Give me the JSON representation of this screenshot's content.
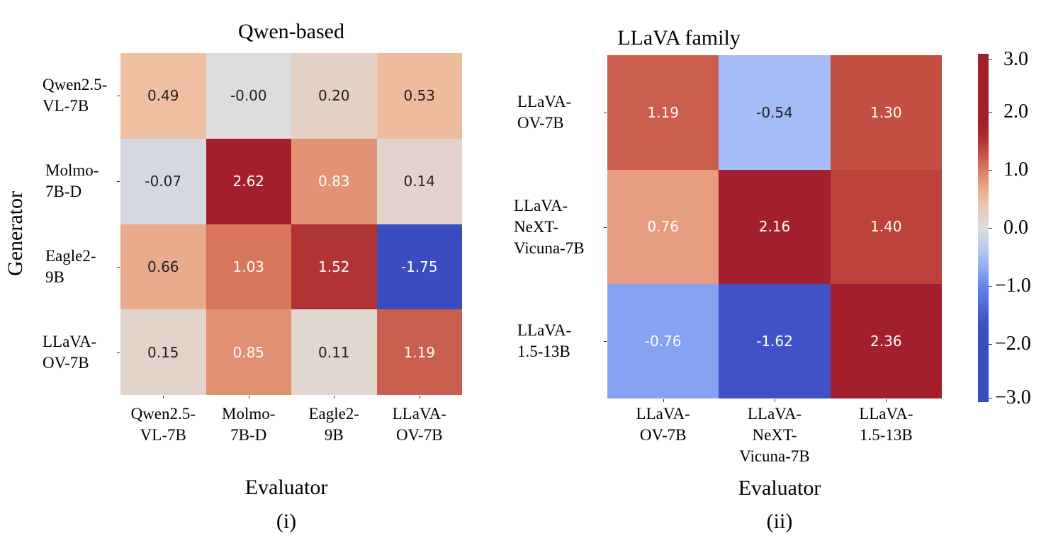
{
  "chart_data": [
    {
      "type": "heatmap",
      "title": "Qwen-based",
      "xlabel": "Evaluator",
      "ylabel": "Generator",
      "panel_label": "(i)",
      "x_categories": [
        "Qwen2.5-\nVL-7B",
        "Molmo-\n7B-D",
        "Eagle2-\n9B",
        "LLaVA-\nOV-7B"
      ],
      "y_categories": [
        "Qwen2.5-\nVL-7B",
        "Molmo-\n7B-D",
        "Eagle2-\n9B",
        "LLaVA-\nOV-7B"
      ],
      "values": [
        [
          "0.49",
          "-0.00",
          "0.20",
          "0.53"
        ],
        [
          "-0.07",
          "2.62",
          "0.83",
          "0.14"
        ],
        [
          "0.66",
          "1.03",
          "1.52",
          "-1.75"
        ],
        [
          "0.15",
          "0.85",
          "0.11",
          "1.19"
        ]
      ],
      "colormap": "coolwarm"
    },
    {
      "type": "heatmap",
      "title": "LLaVA family",
      "xlabel": "Evaluator",
      "panel_label": "(ii)",
      "x_categories": [
        "LLaVA-\nOV-7B",
        "LLaVA-\nNeXT-\nVicuna-7B",
        "LLaVA-\n1.5-13B"
      ],
      "y_categories": [
        "LLaVA-\nOV-7B",
        "LLaVA-\nNeXT-\nVicuna-7B",
        "LLaVA-\n1.5-13B"
      ],
      "values": [
        [
          "1.19",
          "-0.54",
          "1.30"
        ],
        [
          "0.76",
          "2.16",
          "1.40"
        ],
        [
          "-0.76",
          "-1.62",
          "2.36"
        ]
      ],
      "colormap": "coolwarm",
      "colorbar": {
        "range": [
          -3.0,
          3.0
        ],
        "ticks": [
          "3.0",
          "2.0",
          "1.0",
          "0.0",
          "−1.0",
          "−2.0",
          "−3.0"
        ]
      }
    }
  ]
}
